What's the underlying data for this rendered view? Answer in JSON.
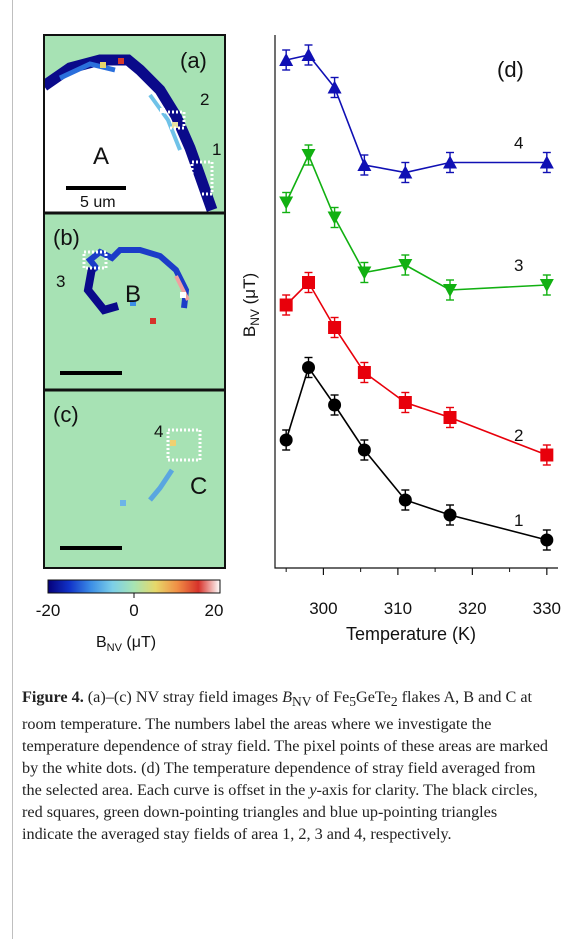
{
  "panels": {
    "a": {
      "label": "(a)",
      "flake": "A",
      "areas": [
        "2",
        "1"
      ],
      "scalebar": "5 um"
    },
    "b": {
      "label": "(b)",
      "flake": "B",
      "areas": [
        "3"
      ]
    },
    "c": {
      "label": "(c)",
      "flake": "C",
      "areas": [
        "4"
      ]
    }
  },
  "colorbar": {
    "ticks": [
      "-20",
      "0",
      "20"
    ],
    "label_main": "B",
    "label_sub": "NV",
    "label_unit": " (μT)",
    "colors": [
      "#05007a",
      "#1133c8",
      "#3c8ee6",
      "#7ccfe8",
      "#a7e4b3",
      "#e6d86a",
      "#f19046",
      "#d6322a",
      "#ffffff"
    ]
  },
  "chart_data": {
    "type": "line",
    "panel_label": "(d)",
    "xlabel": "Temperature (K)",
    "ylabel_main": "B",
    "ylabel_sub": "NV",
    "ylabel_unit": " (μT)",
    "x_ticks": [
      "300",
      "310",
      "320",
      "330"
    ],
    "xlim": [
      293.5,
      331.5
    ],
    "ylim": [
      0,
      10
    ],
    "y_ticks_labeled": false,
    "series": [
      {
        "name": "1",
        "marker": "circle",
        "color": "#000000",
        "x": [
          295,
          298,
          301.5,
          305.5,
          311,
          317,
          330
        ],
        "y": [
          2.3,
          3.75,
          3.0,
          2.1,
          1.1,
          0.8,
          0.3
        ]
      },
      {
        "name": "2",
        "marker": "square",
        "color": "#e8000b",
        "x": [
          295,
          298,
          301.5,
          305.5,
          311,
          317,
          330
        ],
        "y": [
          5.0,
          5.45,
          4.55,
          3.65,
          3.05,
          2.75,
          2.0
        ]
      },
      {
        "name": "3",
        "marker": "triangle-down",
        "color": "#11b011",
        "x": [
          295,
          298,
          301.5,
          305.5,
          311,
          317,
          330
        ],
        "y": [
          7.05,
          8.0,
          6.75,
          5.65,
          5.8,
          5.3,
          5.4
        ]
      },
      {
        "name": "4",
        "marker": "triangle-up",
        "color": "#1010b4",
        "x": [
          295,
          298,
          301.5,
          305.5,
          311,
          317,
          330
        ],
        "y": [
          9.9,
          10.0,
          9.35,
          7.8,
          7.65,
          7.85,
          7.85
        ]
      }
    ]
  },
  "caption": {
    "bold": "Figure 4.",
    "p1": " (a)–(c) NV stray field images ",
    "b_main": "B",
    "b_sub": "NV",
    "p2": " of Fe",
    "fe": "5",
    "p3": "GeTe",
    "te": "2",
    "p4": " flakes A, B and C at room temperature. The numbers label the areas where we investigate the temperature dependence of stray field. The pixel points of these areas are marked by the white dots. (d) The temperature dependence of stray field averaged from the selected area. Each curve is offset in the ",
    "yital": "y",
    "p5": "-axis for clarity. The black circles, red squares, green down-pointing triangles and blue up-pointing triangles indicate the averaged stay fields of area 1, 2, 3 and 4, respectively."
  }
}
